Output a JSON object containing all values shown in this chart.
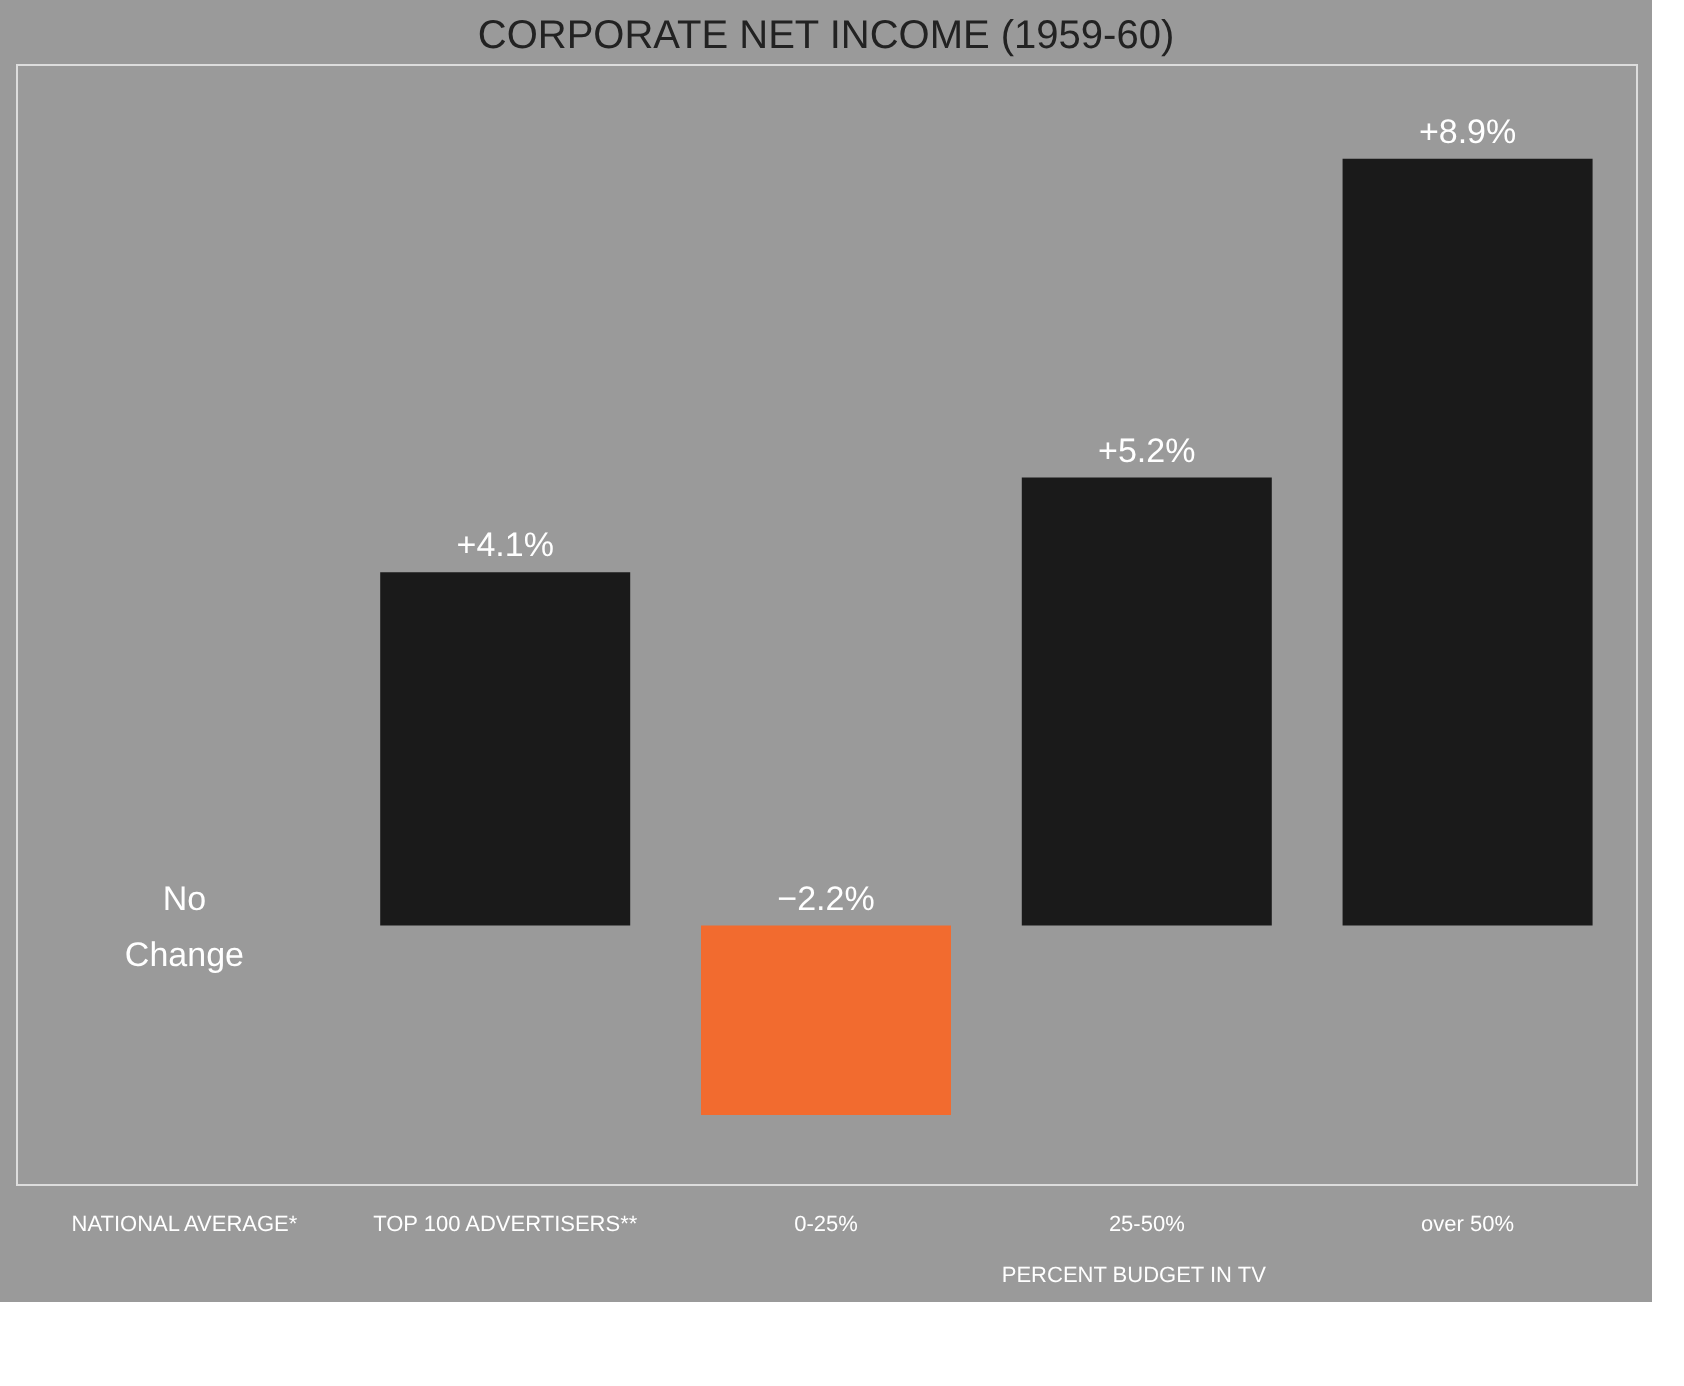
{
  "chart_data": {
    "type": "bar",
    "title": "CORPORATE NET INCOME (1959-60)",
    "categories": [
      "NATIONAL AVERAGE*",
      "TOP 100 ADVERTISERS**",
      "0-25%",
      "25-50%",
      "over 50%"
    ],
    "values": [
      0,
      4.1,
      -2.2,
      5.2,
      8.9
    ],
    "colors": [
      "#1a1a1a",
      "#1a1a1a",
      "#f26b2f",
      "#1a1a1a",
      "#1a1a1a"
    ],
    "value_labels": [
      "No Change",
      "+4.1%",
      "−2.2%",
      "+5.2%",
      "+8.9%"
    ],
    "annotations": [
      "PERCENT BUDGET IN TV"
    ],
    "ylim": [
      -3,
      10
    ],
    "tick_labels": "x",
    "grid": false
  }
}
